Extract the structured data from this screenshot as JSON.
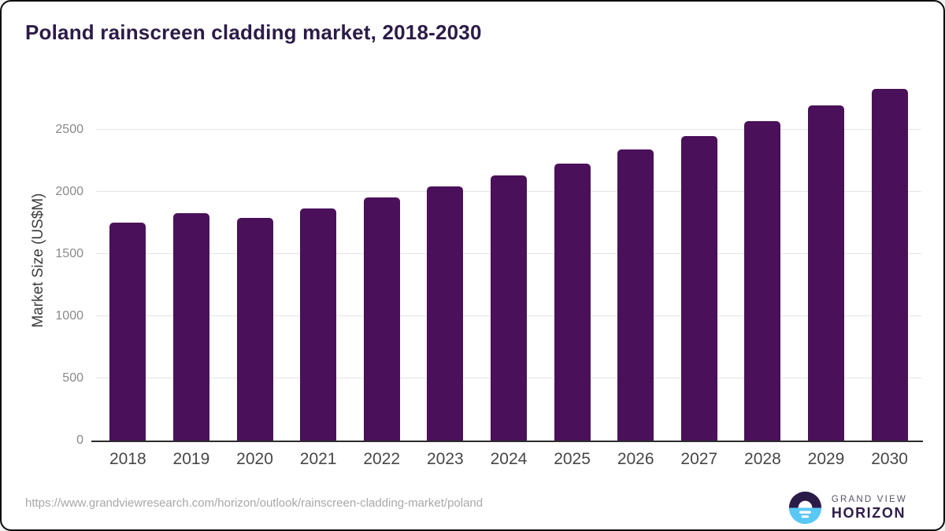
{
  "title": "Poland rainscreen cladding market, 2018-2030",
  "source_url": "https://www.grandviewresearch.com/horizon/outlook/rainscreen-cladding-market/poland",
  "logo": {
    "top_text": "GRAND VIEW",
    "bottom_text": "HORIZON",
    "icon": "grandview-horizon-sun-over-water-icon"
  },
  "colors": {
    "bar": "#4a1059",
    "title_text": "#2c1b47",
    "gridline": "#e4e4e4",
    "axis_line": "#2b2b2b",
    "y_tick_label": "#8a8a8a",
    "x_tick_label": "#474747",
    "url_text": "#a8a8a8",
    "logo_dark": "#2b1b47",
    "logo_blue": "#5ac8f5"
  },
  "chart_data": {
    "type": "bar",
    "title": "Poland rainscreen cladding market, 2018-2030",
    "categories": [
      "2018",
      "2019",
      "2020",
      "2021",
      "2022",
      "2023",
      "2024",
      "2025",
      "2026",
      "2027",
      "2028",
      "2029",
      "2030"
    ],
    "values": [
      1755,
      1830,
      1790,
      1870,
      1955,
      2045,
      2135,
      2230,
      2340,
      2450,
      2570,
      2695,
      2830
    ],
    "xlabel": "",
    "ylabel": "Market Size (US$M)",
    "ylim": [
      0,
      2900
    ],
    "yticks": [
      0,
      500,
      1000,
      1500,
      2000,
      2500
    ],
    "grid": true,
    "legend_position": "none",
    "series_color": "#4a1059"
  }
}
